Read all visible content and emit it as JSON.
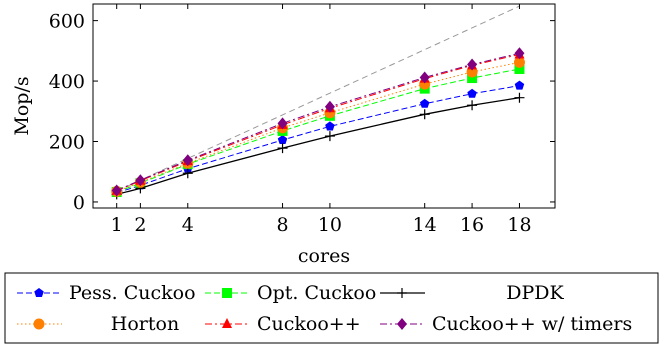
{
  "chart_data": {
    "type": "line",
    "title": "",
    "xlabel": "cores",
    "ylabel": "Mop/s",
    "x": [
      1,
      2,
      4,
      8,
      10,
      14,
      16,
      18
    ],
    "x_ticks": [
      "1",
      "2",
      "4",
      "8",
      "10",
      "14",
      "16",
      "18"
    ],
    "xlim": [
      0,
      19.5
    ],
    "ylim": [
      -20,
      655
    ],
    "y_ticks": [
      0,
      200,
      400,
      600
    ],
    "grid": false,
    "legend_position": "bottom",
    "reference_line": {
      "style": "dashed",
      "color": "#999999",
      "x": [
        1,
        18
      ],
      "y": [
        36,
        648
      ]
    },
    "series": [
      {
        "name": "Pess. Cuckoo",
        "values": [
          30,
          55,
          110,
          205,
          250,
          325,
          358,
          385
        ],
        "color": "#0000ff",
        "dash": "dashed",
        "marker": "pentagon"
      },
      {
        "name": "Opt. Cuckoo",
        "values": [
          33,
          62,
          125,
          235,
          285,
          375,
          410,
          440
        ],
        "color": "#00ff00",
        "dash": "dashed",
        "marker": "square"
      },
      {
        "name": "DPDK",
        "values": [
          25,
          45,
          95,
          178,
          218,
          290,
          320,
          345
        ],
        "color": "#000000",
        "dash": "solid",
        "marker": "plus"
      },
      {
        "name": "Horton",
        "values": [
          35,
          65,
          128,
          245,
          295,
          390,
          430,
          462
        ],
        "color": "#ff8000",
        "dash": "dotted",
        "marker": "circle"
      },
      {
        "name": "Cuckoo++",
        "values": [
          37,
          70,
          135,
          255,
          310,
          408,
          452,
          488
        ],
        "color": "#ff0000",
        "dash": "dashdot",
        "marker": "triangle"
      },
      {
        "name": "Cuckoo++ w/ timers",
        "values": [
          38,
          72,
          138,
          260,
          315,
          412,
          455,
          492
        ],
        "color": "#800080",
        "dash": "dashdot",
        "marker": "diamond"
      }
    ]
  }
}
